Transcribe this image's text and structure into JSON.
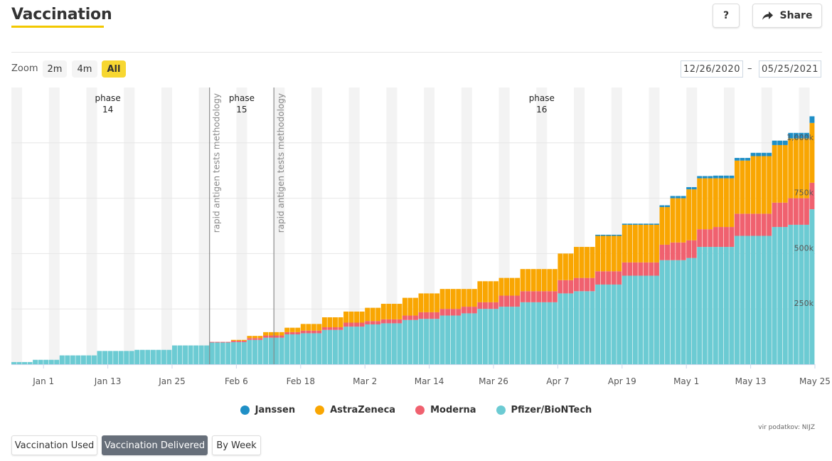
{
  "header": {
    "title": "Vaccination",
    "help_label": "?",
    "share_label": "Share"
  },
  "zoom": {
    "label": "Zoom",
    "options": [
      "2m",
      "4m",
      "All"
    ],
    "selected": "All"
  },
  "date_range": {
    "from": "12/26/2020",
    "separator": "–",
    "to": "05/25/2021"
  },
  "tabs": [
    "Vaccination Used",
    "Vaccination Delivered",
    "By Week"
  ],
  "active_tab": "Vaccination Delivered",
  "source": "vir podatkov: NIJZ",
  "colors": {
    "pfizer": "#6ccbd3",
    "moderna": "#f0616f",
    "astrazeneca": "#f9a602",
    "janssen": "#1f8fc6",
    "highlight": "#f7d731"
  },
  "chart_data": {
    "type": "bar",
    "stacked": true,
    "title": "",
    "xlabel": "",
    "ylabel": "",
    "ylim": [
      0,
      1250000
    ],
    "yticks": [
      250000,
      500000,
      750000,
      1000000
    ],
    "ytick_labels": [
      "250k",
      "500k",
      "750k",
      "1,000k"
    ],
    "xticks": [
      "2021-01-01",
      "2021-01-13",
      "2021-01-25",
      "2021-02-06",
      "2021-02-18",
      "2021-03-02",
      "2021-03-14",
      "2021-03-26",
      "2021-04-07",
      "2021-04-19",
      "2021-05-01",
      "2021-05-13",
      "2021-05-25"
    ],
    "xtick_labels": [
      "Jan 1",
      "Jan 13",
      "Jan 25",
      "Feb 6",
      "Feb 18",
      "Mar 2",
      "Mar 14",
      "Mar 26",
      "Apr 7",
      "Apr 19",
      "May 1",
      "May 13",
      "May 25"
    ],
    "x_range": [
      "2020-12-26",
      "2021-05-25"
    ],
    "legend_position": "bottom",
    "phases": [
      {
        "label": "phase",
        "number": "14",
        "date": "2021-01-13"
      },
      {
        "label": "phase",
        "number": "15",
        "date": "2021-02-07"
      },
      {
        "label": "phase",
        "number": "16",
        "date": "2021-04-04"
      }
    ],
    "annotations": [
      {
        "text": "rapid antigen tests methodology",
        "date": "2021-02-01"
      },
      {
        "text": "rapid antigen tests methodology",
        "date": "2021-02-13"
      }
    ],
    "steps": [
      {
        "date": "2020-12-26",
        "pfizer": 10000,
        "moderna": 0,
        "astrazeneca": 0,
        "janssen": 0
      },
      {
        "date": "2020-12-30",
        "pfizer": 20000,
        "moderna": 0,
        "astrazeneca": 0,
        "janssen": 0
      },
      {
        "date": "2021-01-04",
        "pfizer": 40000,
        "moderna": 0,
        "astrazeneca": 0,
        "janssen": 0
      },
      {
        "date": "2021-01-11",
        "pfizer": 60000,
        "moderna": 0,
        "astrazeneca": 0,
        "janssen": 0
      },
      {
        "date": "2021-01-18",
        "pfizer": 65000,
        "moderna": 0,
        "astrazeneca": 0,
        "janssen": 0
      },
      {
        "date": "2021-01-25",
        "pfizer": 85000,
        "moderna": 0,
        "astrazeneca": 0,
        "janssen": 0
      },
      {
        "date": "2021-02-01",
        "pfizer": 98000,
        "moderna": 3000,
        "astrazeneca": 0,
        "janssen": 0
      },
      {
        "date": "2021-02-05",
        "pfizer": 100000,
        "moderna": 6000,
        "astrazeneca": 4000,
        "janssen": 0
      },
      {
        "date": "2021-02-08",
        "pfizer": 110000,
        "moderna": 8000,
        "astrazeneca": 10000,
        "janssen": 0
      },
      {
        "date": "2021-02-11",
        "pfizer": 120000,
        "moderna": 10000,
        "astrazeneca": 15000,
        "janssen": 0
      },
      {
        "date": "2021-02-15",
        "pfizer": 135000,
        "moderna": 10000,
        "astrazeneca": 20000,
        "janssen": 0
      },
      {
        "date": "2021-02-18",
        "pfizer": 140000,
        "moderna": 12000,
        "astrazeneca": 30000,
        "janssen": 0
      },
      {
        "date": "2021-02-22",
        "pfizer": 155000,
        "moderna": 12000,
        "astrazeneca": 45000,
        "janssen": 0
      },
      {
        "date": "2021-02-26",
        "pfizer": 170000,
        "moderna": 18000,
        "astrazeneca": 50000,
        "janssen": 0
      },
      {
        "date": "2021-03-02",
        "pfizer": 180000,
        "moderna": 15000,
        "astrazeneca": 60000,
        "janssen": 0
      },
      {
        "date": "2021-03-05",
        "pfizer": 185000,
        "moderna": 18000,
        "astrazeneca": 70000,
        "janssen": 0
      },
      {
        "date": "2021-03-09",
        "pfizer": 200000,
        "moderna": 20000,
        "astrazeneca": 80000,
        "janssen": 0
      },
      {
        "date": "2021-03-12",
        "pfizer": 205000,
        "moderna": 30000,
        "astrazeneca": 85000,
        "janssen": 0
      },
      {
        "date": "2021-03-16",
        "pfizer": 220000,
        "moderna": 30000,
        "astrazeneca": 90000,
        "janssen": 0
      },
      {
        "date": "2021-03-20",
        "pfizer": 230000,
        "moderna": 30000,
        "astrazeneca": 80000,
        "janssen": 0
      },
      {
        "date": "2021-03-23",
        "pfizer": 250000,
        "moderna": 30000,
        "astrazeneca": 95000,
        "janssen": 0
      },
      {
        "date": "2021-03-27",
        "pfizer": 260000,
        "moderna": 50000,
        "astrazeneca": 80000,
        "janssen": 0
      },
      {
        "date": "2021-03-31",
        "pfizer": 280000,
        "moderna": 50000,
        "astrazeneca": 100000,
        "janssen": 0
      },
      {
        "date": "2021-04-07",
        "pfizer": 320000,
        "moderna": 60000,
        "astrazeneca": 120000,
        "janssen": 0
      },
      {
        "date": "2021-04-10",
        "pfizer": 330000,
        "moderna": 60000,
        "astrazeneca": 140000,
        "janssen": 0
      },
      {
        "date": "2021-04-14",
        "pfizer": 360000,
        "moderna": 60000,
        "astrazeneca": 160000,
        "janssen": 5000
      },
      {
        "date": "2021-04-19",
        "pfizer": 400000,
        "moderna": 60000,
        "astrazeneca": 170000,
        "janssen": 5000
      },
      {
        "date": "2021-04-23",
        "pfizer": 400000,
        "moderna": 60000,
        "astrazeneca": 170000,
        "janssen": 5000
      },
      {
        "date": "2021-04-26",
        "pfizer": 470000,
        "moderna": 70000,
        "astrazeneca": 170000,
        "janssen": 8000
      },
      {
        "date": "2021-04-28",
        "pfizer": 470000,
        "moderna": 80000,
        "astrazeneca": 200000,
        "janssen": 10000
      },
      {
        "date": "2021-05-01",
        "pfizer": 480000,
        "moderna": 80000,
        "astrazeneca": 230000,
        "janssen": 10000
      },
      {
        "date": "2021-05-03",
        "pfizer": 530000,
        "moderna": 80000,
        "astrazeneca": 230000,
        "janssen": 10000
      },
      {
        "date": "2021-05-06",
        "pfizer": 530000,
        "moderna": 90000,
        "astrazeneca": 220000,
        "janssen": 12000
      },
      {
        "date": "2021-05-10",
        "pfizer": 580000,
        "moderna": 100000,
        "astrazeneca": 240000,
        "janssen": 12000
      },
      {
        "date": "2021-05-13",
        "pfizer": 580000,
        "moderna": 100000,
        "astrazeneca": 260000,
        "janssen": 15000
      },
      {
        "date": "2021-05-17",
        "pfizer": 620000,
        "moderna": 110000,
        "astrazeneca": 260000,
        "janssen": 20000
      },
      {
        "date": "2021-05-20",
        "pfizer": 630000,
        "moderna": 120000,
        "astrazeneca": 270000,
        "janssen": 25000
      },
      {
        "date": "2021-05-24",
        "pfizer": 700000,
        "moderna": 120000,
        "astrazeneca": 270000,
        "janssen": 30000
      }
    ],
    "series": [
      {
        "name": "Janssen",
        "key": "janssen"
      },
      {
        "name": "AstraZeneca",
        "key": "astrazeneca"
      },
      {
        "name": "Moderna",
        "key": "moderna"
      },
      {
        "name": "Pfizer/BioNTech",
        "key": "pfizer"
      }
    ]
  }
}
